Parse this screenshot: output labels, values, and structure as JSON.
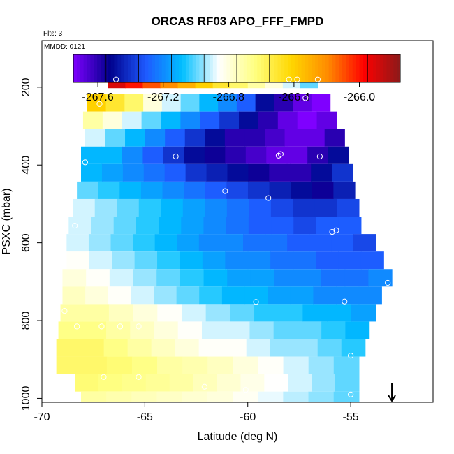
{
  "chart_data": {
    "type": "heatmap",
    "title": "ORCAS RF03 APO_FFF_FMPD",
    "subtitle_left": "Flts: 3",
    "panel_note": "MMDD: 0121",
    "xlabel": "Latitude (deg N)",
    "ylabel": "PSXC (mbar)",
    "xlim": [
      -70,
      -51
    ],
    "ylim": [
      1010,
      80
    ],
    "y_reversed": true,
    "xticks": [
      -70,
      -65,
      -60,
      -55
    ],
    "xtick_labels": [
      "-70",
      "-65",
      "-60",
      "-55"
    ],
    "yticks": [
      200,
      400,
      600,
      800,
      1000
    ],
    "ytick_labels": [
      "200",
      "400",
      "600",
      "800",
      "1000"
    ],
    "colorbar": {
      "position": "top-inside",
      "range": [
        -267.75,
        -265.75
      ],
      "ticks": [
        -267.6,
        -267.2,
        -266.8,
        -266.4,
        -266.0
      ],
      "tick_labels": [
        "-267.6",
        "-267.2",
        "-266.8",
        "-266.4",
        "-266.0"
      ],
      "colors": [
        "#7f00ff",
        "#00008b",
        "#1e5aff",
        "#00bfff",
        "#ffffff",
        "#ffff80",
        "#ffd700",
        "#ff8c00",
        "#ff0000",
        "#8b1a1a"
      ]
    },
    "grid": false,
    "rows": [
      {
        "p": 180,
        "x0": -66.8,
        "x1": -56.6,
        "v": [
          -265.9,
          -266.0,
          -266.1,
          -266.2,
          -266.3,
          -266.4,
          -266.5,
          -266.6,
          -266.7,
          -266.8,
          -266.9,
          -267.0
        ]
      },
      {
        "p": 240,
        "x0": -67.8,
        "x1": -56.0,
        "v": [
          -266.4,
          -266.5,
          -266.6,
          -266.8,
          -266.9,
          -267.0,
          -267.1,
          -267.2,
          -267.3,
          -267.5,
          -267.6,
          -267.7,
          -267.75
        ]
      },
      {
        "p": 285,
        "x0": -68.0,
        "x1": -55.7,
        "v": [
          -266.7,
          -266.8,
          -266.9,
          -267.0,
          -267.1,
          -267.2,
          -267.3,
          -267.4,
          -267.5,
          -267.6,
          -267.7,
          -267.75,
          -267.7
        ]
      },
      {
        "p": 330,
        "x0": -67.9,
        "x1": -55.3,
        "v": [
          -266.9,
          -267.0,
          -267.1,
          -267.2,
          -267.3,
          -267.4,
          -267.5,
          -267.6,
          -267.6,
          -267.65,
          -267.7,
          -267.7,
          -267.6
        ]
      },
      {
        "p": 375,
        "x0": -68.1,
        "x1": -55.1,
        "v": [
          -267.1,
          -267.1,
          -267.2,
          -267.3,
          -267.4,
          -267.5,
          -267.55,
          -267.6,
          -267.65,
          -267.7,
          -267.7,
          -267.6,
          -267.5
        ]
      },
      {
        "p": 420,
        "x0": -68.1,
        "x1": -54.9,
        "v": [
          -267.1,
          -267.15,
          -267.2,
          -267.25,
          -267.3,
          -267.4,
          -267.45,
          -267.5,
          -267.55,
          -267.6,
          -267.6,
          -267.5,
          -267.4
        ]
      },
      {
        "p": 465,
        "x0": -68.3,
        "x1": -54.8,
        "v": [
          -267.0,
          -267.05,
          -267.1,
          -267.15,
          -267.2,
          -267.25,
          -267.3,
          -267.35,
          -267.4,
          -267.45,
          -267.5,
          -267.55,
          -267.45
        ]
      },
      {
        "p": 510,
        "x0": -68.5,
        "x1": -54.6,
        "v": [
          -266.9,
          -266.95,
          -267.0,
          -267.05,
          -267.1,
          -267.15,
          -267.2,
          -267.25,
          -267.3,
          -267.35,
          -267.4,
          -267.4,
          -267.35
        ]
      },
      {
        "p": 555,
        "x0": -68.7,
        "x1": -54.5,
        "v": [
          -266.9,
          -266.95,
          -267.0,
          -267.05,
          -267.1,
          -267.15,
          -267.2,
          -267.25,
          -267.3,
          -267.3,
          -267.35,
          -267.3,
          -267.3
        ]
      },
      {
        "p": 600,
        "x0": -68.8,
        "x1": -53.8,
        "v": [
          -266.9,
          -266.95,
          -267.0,
          -267.05,
          -267.1,
          -267.15,
          -267.2,
          -267.2,
          -267.25,
          -267.25,
          -267.3,
          -267.3,
          -267.3,
          -267.35
        ]
      },
      {
        "p": 645,
        "x0": -68.8,
        "x1": -53.4,
        "v": [
          -266.85,
          -266.9,
          -266.95,
          -267.0,
          -267.05,
          -267.1,
          -267.15,
          -267.2,
          -267.2,
          -267.25,
          -267.25,
          -267.3,
          -267.3,
          -267.3
        ]
      },
      {
        "p": 690,
        "x0": -69.0,
        "x1": -53.0,
        "v": [
          -266.8,
          -266.85,
          -266.9,
          -266.95,
          -267.0,
          -267.05,
          -267.1,
          -267.15,
          -267.15,
          -267.2,
          -267.2,
          -267.25,
          -267.25,
          -267.2
        ]
      },
      {
        "p": 735,
        "x0": -69.0,
        "x1": -53.5,
        "v": [
          -266.75,
          -266.8,
          -266.85,
          -266.9,
          -266.95,
          -267.0,
          -267.05,
          -267.1,
          -267.1,
          -267.15,
          -267.15,
          -267.2,
          -267.2,
          -267.2
        ]
      },
      {
        "p": 780,
        "x0": -69.1,
        "x1": -53.8,
        "v": [
          -266.7,
          -266.7,
          -266.75,
          -266.8,
          -266.85,
          -266.9,
          -266.95,
          -267.0,
          -267.05,
          -267.05,
          -267.1,
          -267.1,
          -267.15
        ]
      },
      {
        "p": 825,
        "x0": -69.2,
        "x1": -54.1,
        "v": [
          -266.65,
          -266.65,
          -266.7,
          -266.75,
          -266.8,
          -266.85,
          -266.9,
          -266.9,
          -266.95,
          -267.0,
          -267.0,
          -267.05,
          -267.1
        ]
      },
      {
        "p": 870,
        "x0": -69.3,
        "x1": -54.3,
        "v": [
          -266.6,
          -266.6,
          -266.65,
          -266.7,
          -266.75,
          -266.8,
          -266.85,
          -266.85,
          -266.9,
          -266.95,
          -266.95,
          -267.0,
          -267.05
        ]
      },
      {
        "p": 915,
        "x0": -69.3,
        "x1": -54.6,
        "v": [
          -266.6,
          -266.6,
          -266.62,
          -266.65,
          -266.7,
          -266.72,
          -266.75,
          -266.8,
          -266.85,
          -266.9,
          -266.95,
          -267.0
        ]
      },
      {
        "p": 960,
        "x0": -68.4,
        "x1": -54.6,
        "v": [
          -266.62,
          -266.64,
          -266.66,
          -266.68,
          -266.7,
          -266.74,
          -266.78,
          -266.82,
          -266.86,
          -266.9,
          -266.95,
          -267.0
        ]
      },
      {
        "p": 1005,
        "x0": -68.1,
        "x1": -54.6,
        "v": [
          -266.7,
          -266.72,
          -266.74,
          -266.76,
          -266.78,
          -266.8,
          -266.84,
          -266.88,
          -266.92,
          -266.96,
          -267.0
        ]
      }
    ],
    "points": [
      {
        "x": -66.4,
        "y": 180
      },
      {
        "x": -58.0,
        "y": 180
      },
      {
        "x": -57.6,
        "y": 180
      },
      {
        "x": -56.6,
        "y": 180
      },
      {
        "x": -57.2,
        "y": 228
      },
      {
        "x": -67.2,
        "y": 243
      },
      {
        "x": -63.5,
        "y": 378
      },
      {
        "x": -58.5,
        "y": 376
      },
      {
        "x": -58.4,
        "y": 372
      },
      {
        "x": -56.5,
        "y": 378
      },
      {
        "x": -67.9,
        "y": 393
      },
      {
        "x": -61.1,
        "y": 467
      },
      {
        "x": -59.0,
        "y": 485
      },
      {
        "x": -68.4,
        "y": 556
      },
      {
        "x": -55.9,
        "y": 572
      },
      {
        "x": -55.7,
        "y": 568
      },
      {
        "x": -53.2,
        "y": 703
      },
      {
        "x": -59.6,
        "y": 752
      },
      {
        "x": -55.3,
        "y": 751
      },
      {
        "x": -68.9,
        "y": 775
      },
      {
        "x": -68.3,
        "y": 815
      },
      {
        "x": -67.1,
        "y": 815
      },
      {
        "x": -66.2,
        "y": 815
      },
      {
        "x": -65.3,
        "y": 815
      },
      {
        "x": -55.0,
        "y": 890
      },
      {
        "x": -67.0,
        "y": 945
      },
      {
        "x": -65.3,
        "y": 945
      },
      {
        "x": -62.1,
        "y": 970
      },
      {
        "x": -60.1,
        "y": 978
      },
      {
        "x": -55.0,
        "y": 990
      }
    ],
    "arrow": {
      "x": -53.0,
      "y_from": 960,
      "y_to": 1010
    }
  }
}
